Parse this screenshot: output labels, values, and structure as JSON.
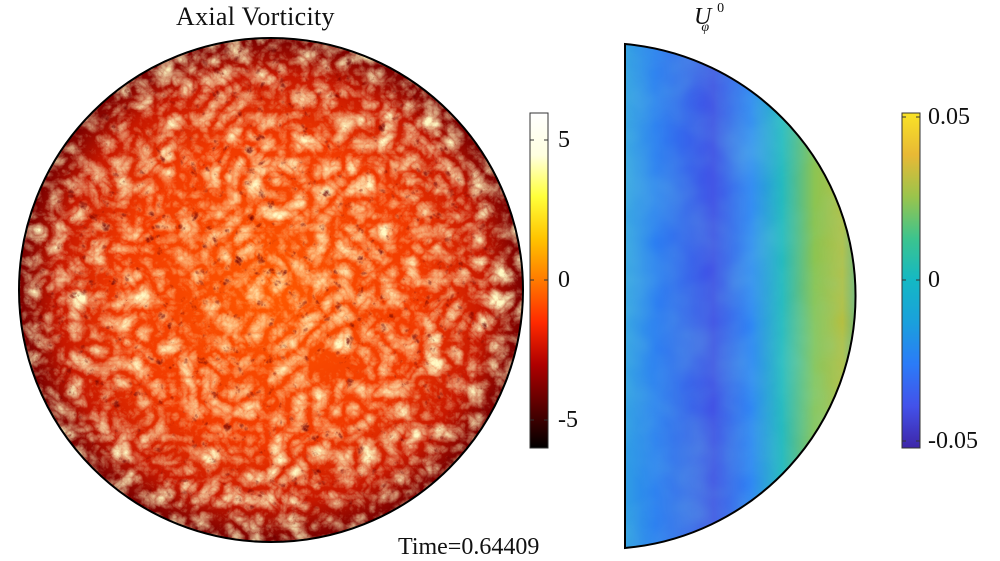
{
  "left_panel": {
    "title": "Axial Vorticity",
    "colormap": "hot",
    "colorbar": {
      "range": [
        -6,
        6
      ],
      "ticks": [
        "5",
        "0",
        "-5"
      ],
      "colors": [
        "#000000",
        "#5a0000",
        "#b00000",
        "#ff2a00",
        "#ff7a00",
        "#ffc400",
        "#ffff3a",
        "#ffffe0",
        "#ffffff"
      ]
    }
  },
  "right_panel": {
    "title": "U",
    "title_subscript": "φ",
    "title_superscript": "0",
    "colormap": "parula",
    "colorbar": {
      "range": [
        -0.06,
        0.06
      ],
      "ticks": [
        "0.05",
        "0",
        "-0.05"
      ],
      "colors": [
        "#3e26a8",
        "#4352ea",
        "#2b7bf8",
        "#1aa0dc",
        "#14b8c4",
        "#3cc48e",
        "#9ac44c",
        "#e8b935",
        "#f9e326"
      ]
    }
  },
  "time_label": "Time=0.64409"
}
